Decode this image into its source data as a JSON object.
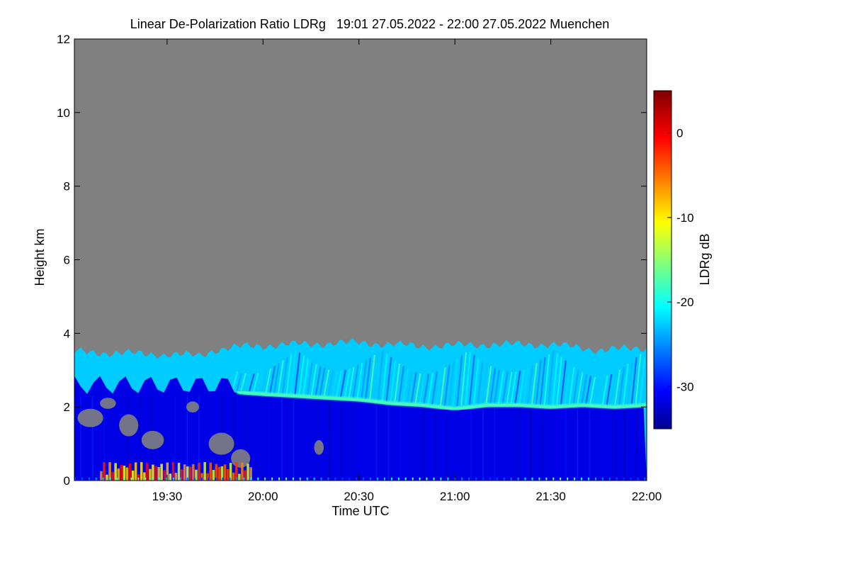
{
  "chart_data": {
    "type": "heatmap",
    "title": "Linear De-Polarization Ratio LDRg   19:01 27.05.2022 - 22:00 27.05.2022 Muenchen",
    "xlabel": "Time UTC",
    "ylabel": "Height km",
    "x_range_minutes_utc": [
      1141,
      1320
    ],
    "x_ticks": [
      {
        "minute": 1170,
        "label": "19:30"
      },
      {
        "minute": 1200,
        "label": "20:00"
      },
      {
        "minute": 1230,
        "label": "20:30"
      },
      {
        "minute": 1260,
        "label": "21:00"
      },
      {
        "minute": 1290,
        "label": "21:30"
      },
      {
        "minute": 1320,
        "label": "22:00"
      }
    ],
    "ylim": [
      0,
      12
    ],
    "y_ticks": [
      {
        "value": 0,
        "label": "0"
      },
      {
        "value": 2,
        "label": "2"
      },
      {
        "value": 4,
        "label": "4"
      },
      {
        "value": 6,
        "label": "6"
      },
      {
        "value": 8,
        "label": "8"
      },
      {
        "value": 10,
        "label": "10"
      },
      {
        "value": 12,
        "label": "12"
      }
    ],
    "colorbar": {
      "label": "LDRg dB",
      "range_db": [
        -35,
        5
      ],
      "ticks": [
        {
          "value": 0,
          "label": "0"
        },
        {
          "value": -10,
          "label": "-10"
        },
        {
          "value": -20,
          "label": "-20"
        },
        {
          "value": -30,
          "label": "-30"
        }
      ]
    },
    "background_color": "#808080",
    "features": {
      "signal_top_km": [
        [
          1141,
          3.5
        ],
        [
          1160,
          3.45
        ],
        [
          1180,
          3.4
        ],
        [
          1185,
          3.55
        ],
        [
          1195,
          3.65
        ],
        [
          1210,
          3.7
        ],
        [
          1230,
          3.75
        ],
        [
          1250,
          3.65
        ],
        [
          1270,
          3.7
        ],
        [
          1290,
          3.7
        ],
        [
          1305,
          3.55
        ],
        [
          1320,
          3.6
        ]
      ],
      "melting_layer_km": [
        [
          1192,
          2.4
        ],
        [
          1200,
          2.35
        ],
        [
          1210,
          2.3
        ],
        [
          1220,
          2.25
        ],
        [
          1230,
          2.2
        ],
        [
          1240,
          2.1
        ],
        [
          1250,
          2.05
        ],
        [
          1260,
          1.95
        ],
        [
          1270,
          2.05
        ],
        [
          1280,
          2.05
        ],
        [
          1290,
          2.0
        ],
        [
          1300,
          2.05
        ],
        [
          1310,
          2.0
        ],
        [
          1320,
          2.05
        ]
      ],
      "upper_layer_db": -22,
      "lower_layer_db": -31,
      "melting_layer_db": -17,
      "surface_clutter_db": -6
    }
  }
}
